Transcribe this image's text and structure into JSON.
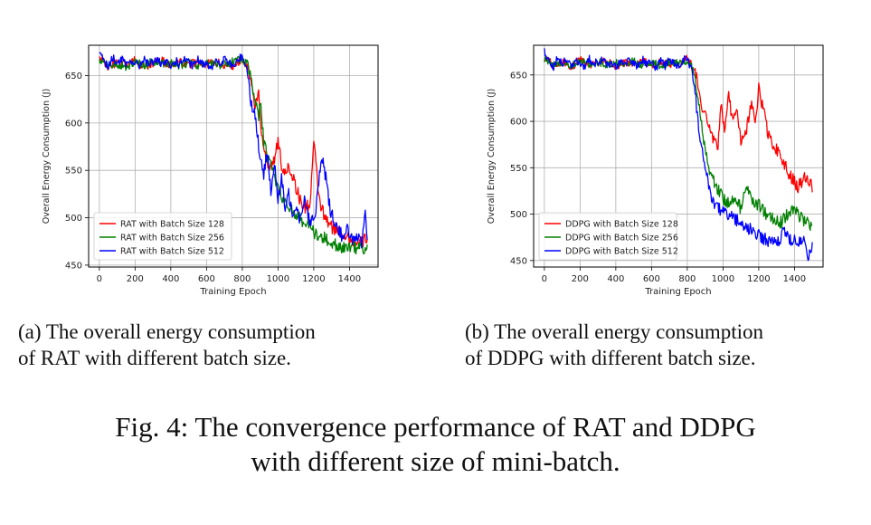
{
  "captions": {
    "a": [
      "(a) The overall energy consumption",
      "of RAT with different batch size."
    ],
    "b": [
      "(b) The overall energy consumption",
      "of DDPG with different batch size."
    ],
    "figure": [
      "Fig. 4: The convergence performance of RAT and DDPG",
      "with different size of mini-batch."
    ]
  },
  "chart_data": [
    {
      "type": "line",
      "title": "",
      "xlabel": "Training Epoch",
      "ylabel": "Overall Energy Consumption (J)",
      "xlim": [
        -60,
        1560
      ],
      "ylim": [
        448,
        682
      ],
      "xticks": [
        0,
        200,
        400,
        600,
        800,
        1000,
        1200,
        1400
      ],
      "yticks": [
        450,
        500,
        550,
        600,
        650
      ],
      "grid": true,
      "legend_position": "lower-left",
      "series": [
        {
          "name": "RAT with Batch Size 128",
          "color": "#ff0000",
          "x": [
            0,
            50,
            100,
            150,
            200,
            250,
            300,
            350,
            400,
            450,
            500,
            550,
            600,
            650,
            700,
            750,
            800,
            830,
            850,
            870,
            880,
            890,
            900,
            920,
            950,
            980,
            1000,
            1030,
            1060,
            1090,
            1120,
            1150,
            1180,
            1200,
            1230,
            1260,
            1300,
            1350,
            1400,
            1450,
            1500
          ],
          "y": [
            670,
            658,
            664,
            660,
            667,
            659,
            663,
            666,
            660,
            664,
            661,
            665,
            662,
            664,
            661,
            660,
            668,
            660,
            640,
            615,
            625,
            635,
            600,
            575,
            555,
            560,
            580,
            545,
            555,
            540,
            520,
            510,
            515,
            580,
            520,
            500,
            490,
            485,
            478,
            470,
            480
          ]
        },
        {
          "name": "RAT with Batch Size 256",
          "color": "#008000",
          "x": [
            0,
            50,
            100,
            150,
            200,
            250,
            300,
            350,
            400,
            450,
            500,
            550,
            600,
            650,
            700,
            750,
            800,
            830,
            850,
            870,
            890,
            900,
            920,
            950,
            980,
            1000,
            1030,
            1060,
            1090,
            1120,
            1150,
            1180,
            1200,
            1230,
            1260,
            1300,
            1350,
            1400,
            1450,
            1500
          ],
          "y": [
            668,
            660,
            662,
            659,
            664,
            661,
            665,
            662,
            663,
            661,
            664,
            660,
            663,
            661,
            662,
            665,
            667,
            660,
            645,
            625,
            605,
            625,
            580,
            560,
            545,
            530,
            520,
            510,
            505,
            500,
            495,
            490,
            485,
            480,
            478,
            472,
            470,
            468,
            467,
            466
          ]
        },
        {
          "name": "RAT with Batch Size 512",
          "color": "#0000ff",
          "x": [
            0,
            25,
            50,
            75,
            100,
            125,
            150,
            175,
            200,
            225,
            250,
            275,
            300,
            325,
            350,
            375,
            400,
            425,
            450,
            475,
            500,
            525,
            550,
            575,
            600,
            625,
            650,
            675,
            700,
            725,
            750,
            775,
            800,
            815,
            830,
            850,
            870,
            890,
            900,
            920,
            940,
            960,
            980,
            1000,
            1020,
            1040,
            1060,
            1080,
            1100,
            1120,
            1150,
            1180,
            1210,
            1230,
            1250,
            1270,
            1290,
            1310,
            1330,
            1350,
            1370,
            1390,
            1410,
            1430,
            1450,
            1470,
            1490,
            1500
          ],
          "y": [
            675,
            665,
            658,
            670,
            662,
            668,
            660,
            666,
            663,
            660,
            669,
            661,
            665,
            667,
            660,
            664,
            659,
            666,
            661,
            668,
            663,
            660,
            667,
            662,
            664,
            659,
            665,
            661,
            668,
            663,
            660,
            665,
            672,
            663,
            655,
            620,
            610,
            580,
            560,
            545,
            570,
            530,
            555,
            520,
            540,
            510,
            525,
            505,
            515,
            500,
            520,
            495,
            500,
            545,
            563,
            540,
            510,
            500,
            490,
            485,
            475,
            490,
            480,
            475,
            478,
            470,
            508,
            470
          ]
        }
      ]
    },
    {
      "type": "line",
      "title": "",
      "xlabel": "Training Epoch",
      "ylabel": "Overall Energy Consumption (J)",
      "xlim": [
        -60,
        1560
      ],
      "ylim": [
        443,
        682
      ],
      "xticks": [
        0,
        200,
        400,
        600,
        800,
        1000,
        1200,
        1400
      ],
      "yticks": [
        450,
        500,
        550,
        600,
        650
      ],
      "grid": true,
      "legend_position": "lower-left",
      "series": [
        {
          "name": "DDPG with Batch Size 128",
          "color": "#ff0000",
          "x": [
            0,
            50,
            100,
            150,
            200,
            250,
            300,
            350,
            400,
            450,
            500,
            550,
            600,
            650,
            700,
            750,
            800,
            830,
            850,
            870,
            890,
            910,
            930,
            950,
            970,
            990,
            1010,
            1030,
            1050,
            1080,
            1100,
            1130,
            1160,
            1180,
            1200,
            1230,
            1260,
            1300,
            1340,
            1380,
            1420,
            1460,
            1500
          ],
          "y": [
            670,
            660,
            664,
            659,
            666,
            661,
            663,
            665,
            660,
            663,
            662,
            666,
            660,
            664,
            662,
            661,
            668,
            660,
            650,
            625,
            610,
            605,
            590,
            580,
            570,
            620,
            590,
            635,
            600,
            610,
            580,
            590,
            620,
            600,
            635,
            610,
            580,
            570,
            555,
            540,
            530,
            540,
            530
          ]
        },
        {
          "name": "DDPG with Batch Size 256",
          "color": "#008000",
          "x": [
            0,
            50,
            100,
            150,
            200,
            250,
            300,
            350,
            400,
            450,
            500,
            550,
            600,
            650,
            700,
            750,
            800,
            830,
            850,
            870,
            890,
            910,
            930,
            950,
            980,
            1010,
            1040,
            1070,
            1100,
            1130,
            1160,
            1200,
            1240,
            1280,
            1320,
            1360,
            1400,
            1440,
            1480,
            1500
          ],
          "y": [
            668,
            661,
            663,
            660,
            665,
            662,
            664,
            661,
            663,
            662,
            665,
            661,
            663,
            660,
            664,
            662,
            666,
            658,
            640,
            615,
            580,
            560,
            545,
            535,
            525,
            515,
            510,
            520,
            505,
            530,
            515,
            510,
            500,
            495,
            490,
            500,
            505,
            495,
            490,
            488
          ]
        },
        {
          "name": "DDPG with Batch Size 512",
          "color": "#0000ff",
          "x": [
            0,
            25,
            50,
            75,
            100,
            125,
            150,
            175,
            200,
            225,
            250,
            275,
            300,
            325,
            350,
            375,
            400,
            425,
            450,
            475,
            500,
            525,
            550,
            575,
            600,
            625,
            650,
            675,
            700,
            725,
            750,
            775,
            800,
            815,
            830,
            850,
            870,
            890,
            910,
            930,
            950,
            980,
            1010,
            1040,
            1070,
            1100,
            1140,
            1180,
            1220,
            1260,
            1300,
            1340,
            1380,
            1420,
            1460,
            1480,
            1500
          ],
          "y": [
            675,
            664,
            657,
            670,
            661,
            667,
            660,
            665,
            663,
            659,
            668,
            662,
            664,
            667,
            660,
            663,
            658,
            665,
            661,
            667,
            662,
            660,
            666,
            661,
            664,
            658,
            665,
            660,
            667,
            662,
            660,
            664,
            670,
            660,
            650,
            620,
            580,
            560,
            545,
            520,
            510,
            505,
            500,
            498,
            495,
            490,
            485,
            480,
            475,
            470,
            468,
            480,
            472,
            470,
            470,
            452,
            468
          ]
        }
      ]
    }
  ]
}
